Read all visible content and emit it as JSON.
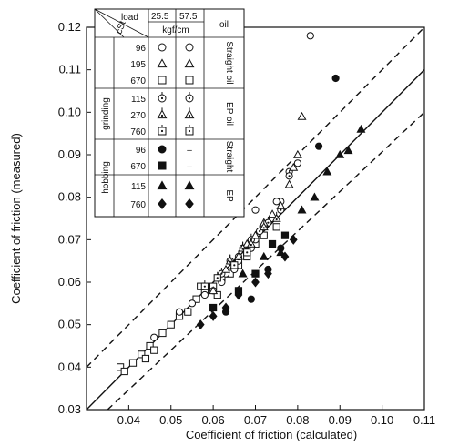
{
  "chart_data": {
    "type": "scatter",
    "title": "",
    "xlabel": "Coefficient of friction (calculated)",
    "ylabel": "Coefficient of friction (measured)",
    "xlim": [
      0.03,
      0.11
    ],
    "ylim": [
      0.03,
      0.12
    ],
    "x_ticks": [
      "0.04",
      "0.05",
      "0.06",
      "0.07",
      "0.08",
      "0.09",
      "0.10",
      "0.11"
    ],
    "y_ticks": [
      "0.03",
      "0.04",
      "0.05",
      "0.06",
      "0.07",
      "0.08",
      "0.09",
      "0.10",
      "0.11",
      "0.12"
    ],
    "y_tick0_label": "0.03",
    "reference_lines": [
      {
        "style": "solid",
        "points": [
          [
            0.03,
            0.03
          ],
          [
            0.11,
            0.11
          ]
        ]
      },
      {
        "style": "dashed",
        "points": [
          [
            0.03,
            0.04
          ],
          [
            0.11,
            0.12
          ]
        ]
      },
      {
        "style": "dashed",
        "points": [
          [
            0.035,
            0.03
          ],
          [
            0.11,
            0.1
          ]
        ]
      }
    ],
    "legend": {
      "position": "top-left",
      "hdr_load": "load",
      "hdr_cst": "cSt",
      "hdr_load1": "25.5",
      "hdr_load2": "57.5",
      "hdr_unit": "kgf/cm",
      "hdr_oil": "oil",
      "proc_grinding": "grinding",
      "proc_hobbing": "hobbing",
      "oil_straight_oil": "Straight oil",
      "oil_ep_oil": "EP oil",
      "oil_straight": "Straight",
      "oil_ep": "EP",
      "dash": "–",
      "rows": [
        {
          "cst": "96",
          "m1": "circle",
          "m2": "circle"
        },
        {
          "cst": "195",
          "m1": "triangle",
          "m2": "triangle"
        },
        {
          "cst": "670",
          "m1": "square",
          "m2": "square"
        },
        {
          "cst": "115",
          "m1": "circle-dot",
          "m2": "circle-dot"
        },
        {
          "cst": "270",
          "m1": "triangle-dot",
          "m2": "triangle-dot"
        },
        {
          "cst": "760",
          "m1": "square-dot",
          "m2": "square-dot"
        },
        {
          "cst": "96",
          "m1": "circle-filled",
          "m2": "none"
        },
        {
          "cst": "670",
          "m1": "square-filled",
          "m2": "none"
        },
        {
          "cst": "115",
          "m1": "triangle-filled",
          "m2": "triangle-filled"
        },
        {
          "cst": "760",
          "m1": "diamond-filled",
          "m2": "diamond-filled"
        }
      ]
    },
    "series": [
      {
        "marker": "square",
        "x": [
          0.038,
          0.039,
          0.041,
          0.043,
          0.044,
          0.045,
          0.046,
          0.048,
          0.05,
          0.052,
          0.054,
          0.056,
          0.058,
          0.06,
          0.062,
          0.064,
          0.066,
          0.068,
          0.07,
          0.072,
          0.075,
          0.057,
          0.061
        ],
        "y": [
          0.04,
          0.039,
          0.041,
          0.043,
          0.042,
          0.045,
          0.044,
          0.048,
          0.05,
          0.052,
          0.053,
          0.056,
          0.058,
          0.059,
          0.061,
          0.062,
          0.064,
          0.066,
          0.069,
          0.071,
          0.073,
          0.059,
          0.057
        ]
      },
      {
        "marker": "circle",
        "x": [
          0.046,
          0.052,
          0.055,
          0.058,
          0.06,
          0.062,
          0.063,
          0.065,
          0.066,
          0.068,
          0.069,
          0.07,
          0.071,
          0.072,
          0.074,
          0.076,
          0.078,
          0.08,
          0.083,
          0.07,
          0.075
        ],
        "y": [
          0.047,
          0.053,
          0.055,
          0.057,
          0.058,
          0.06,
          0.062,
          0.063,
          0.065,
          0.067,
          0.068,
          0.07,
          0.072,
          0.073,
          0.075,
          0.079,
          0.086,
          0.088,
          0.118,
          0.077,
          0.079
        ]
      },
      {
        "marker": "circle-dot",
        "x": [
          0.062,
          0.064,
          0.066,
          0.067,
          0.069,
          0.071,
          0.073,
          0.076,
          0.078
        ],
        "y": [
          0.062,
          0.065,
          0.066,
          0.068,
          0.07,
          0.072,
          0.074,
          0.077,
          0.085
        ]
      },
      {
        "marker": "triangle",
        "x": [
          0.06,
          0.063,
          0.065,
          0.066,
          0.068,
          0.07,
          0.072,
          0.074,
          0.076,
          0.078,
          0.079,
          0.08,
          0.081
        ],
        "y": [
          0.058,
          0.063,
          0.064,
          0.066,
          0.069,
          0.071,
          0.074,
          0.076,
          0.078,
          0.083,
          0.087,
          0.09,
          0.099
        ]
      },
      {
        "marker": "triangle-dot",
        "x": [
          0.064,
          0.067,
          0.069,
          0.072,
          0.075
        ],
        "y": [
          0.065,
          0.068,
          0.069,
          0.073,
          0.075
        ]
      },
      {
        "marker": "square-dot",
        "x": [
          0.058,
          0.061,
          0.065,
          0.068
        ],
        "y": [
          0.059,
          0.061,
          0.064,
          0.067
        ]
      },
      {
        "marker": "circle-filled",
        "x": [
          0.063,
          0.069,
          0.073,
          0.076,
          0.085,
          0.089
        ],
        "y": [
          0.053,
          0.056,
          0.063,
          0.068,
          0.092,
          0.108
        ]
      },
      {
        "marker": "square-filled",
        "x": [
          0.06,
          0.066,
          0.07,
          0.074,
          0.077
        ],
        "y": [
          0.054,
          0.058,
          0.062,
          0.069,
          0.071
        ]
      },
      {
        "marker": "triangle-filled",
        "x": [
          0.067,
          0.072,
          0.076,
          0.081,
          0.084,
          0.087,
          0.09,
          0.092,
          0.095
        ],
        "y": [
          0.062,
          0.066,
          0.067,
          0.077,
          0.08,
          0.086,
          0.09,
          0.091,
          0.096
        ]
      },
      {
        "marker": "diamond-filled",
        "x": [
          0.057,
          0.06,
          0.063,
          0.066,
          0.07,
          0.073,
          0.077,
          0.079
        ],
        "y": [
          0.05,
          0.052,
          0.054,
          0.057,
          0.06,
          0.062,
          0.066,
          0.07
        ]
      }
    ]
  }
}
